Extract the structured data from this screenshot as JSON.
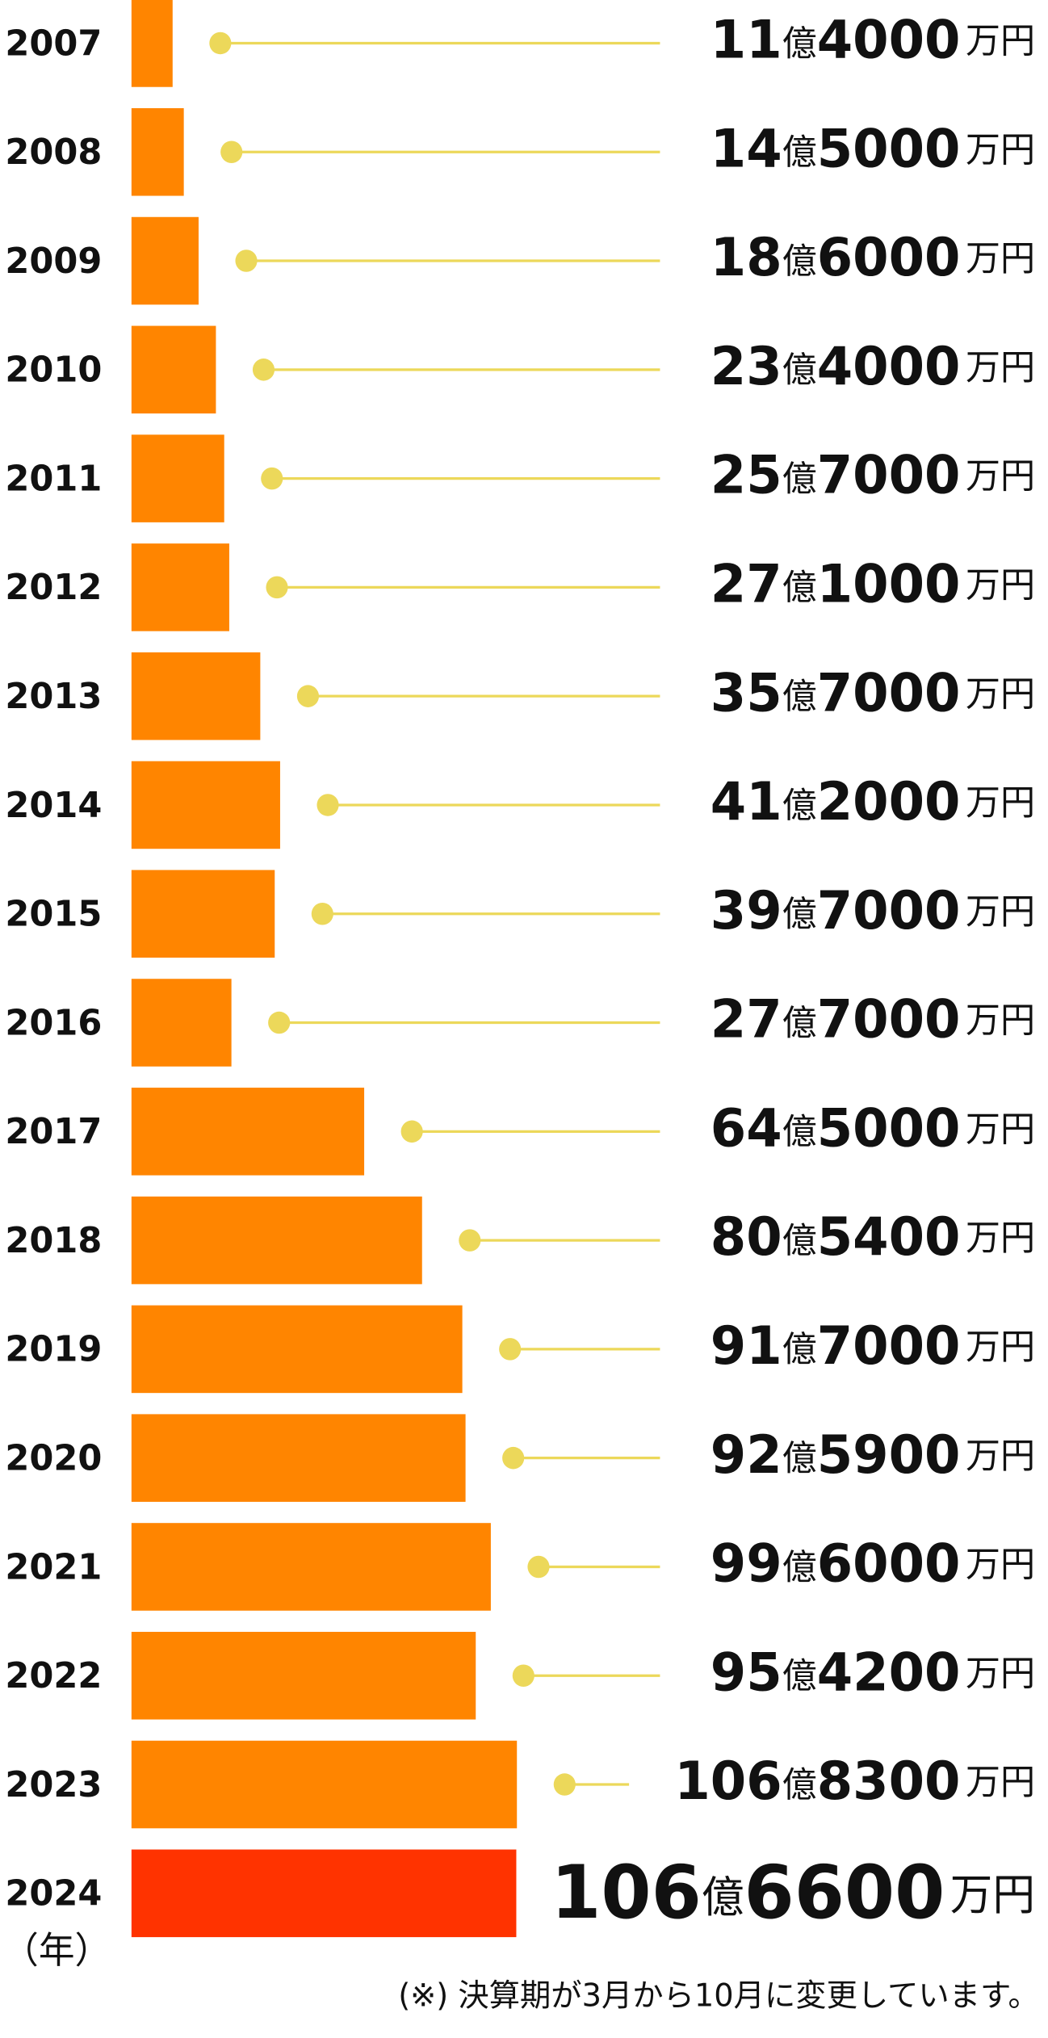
{
  "chart_data": {
    "type": "bar",
    "orientation": "horizontal",
    "categories": [
      "2007",
      "2008",
      "2009",
      "2010",
      "2011",
      "2012",
      "2013",
      "2014",
      "2015",
      "2016",
      "2017",
      "2018",
      "2019",
      "2020",
      "2021",
      "2022",
      "2023",
      "2024"
    ],
    "values": [
      114000,
      145000,
      186000,
      234000,
      257000,
      271000,
      357000,
      412000,
      397000,
      277000,
      645000,
      805400,
      917000,
      925900,
      996000,
      954200,
      1068300,
      1066600
    ],
    "value_labels": [
      "11億4000万円",
      "14億5000万円",
      "18億6000万円",
      "23億4000万円",
      "25億7000万円",
      "27億1000万円",
      "35億7000万円",
      "41億2000万円",
      "39億7000万円",
      "27億7000万円",
      "64億5000万円",
      "80億5400万円",
      "91億7000万円",
      "92億5900万円",
      "99億6000万円",
      "95億4200万円",
      "106億8300万円",
      "106億6600万円"
    ],
    "colors": [
      "#ff8500",
      "#ff8500",
      "#ff8500",
      "#ff8500",
      "#ff8500",
      "#ff8500",
      "#ff8500",
      "#ff8500",
      "#ff8500",
      "#ff8500",
      "#ff8500",
      "#ff8500",
      "#ff8500",
      "#ff8500",
      "#ff8500",
      "#ff8500",
      "#ff8500",
      "#ff3300"
    ],
    "leader_color": "#ecd85a",
    "x_label": "（年）",
    "note": "(※) 決算期が3月から10月に変更しています。"
  }
}
